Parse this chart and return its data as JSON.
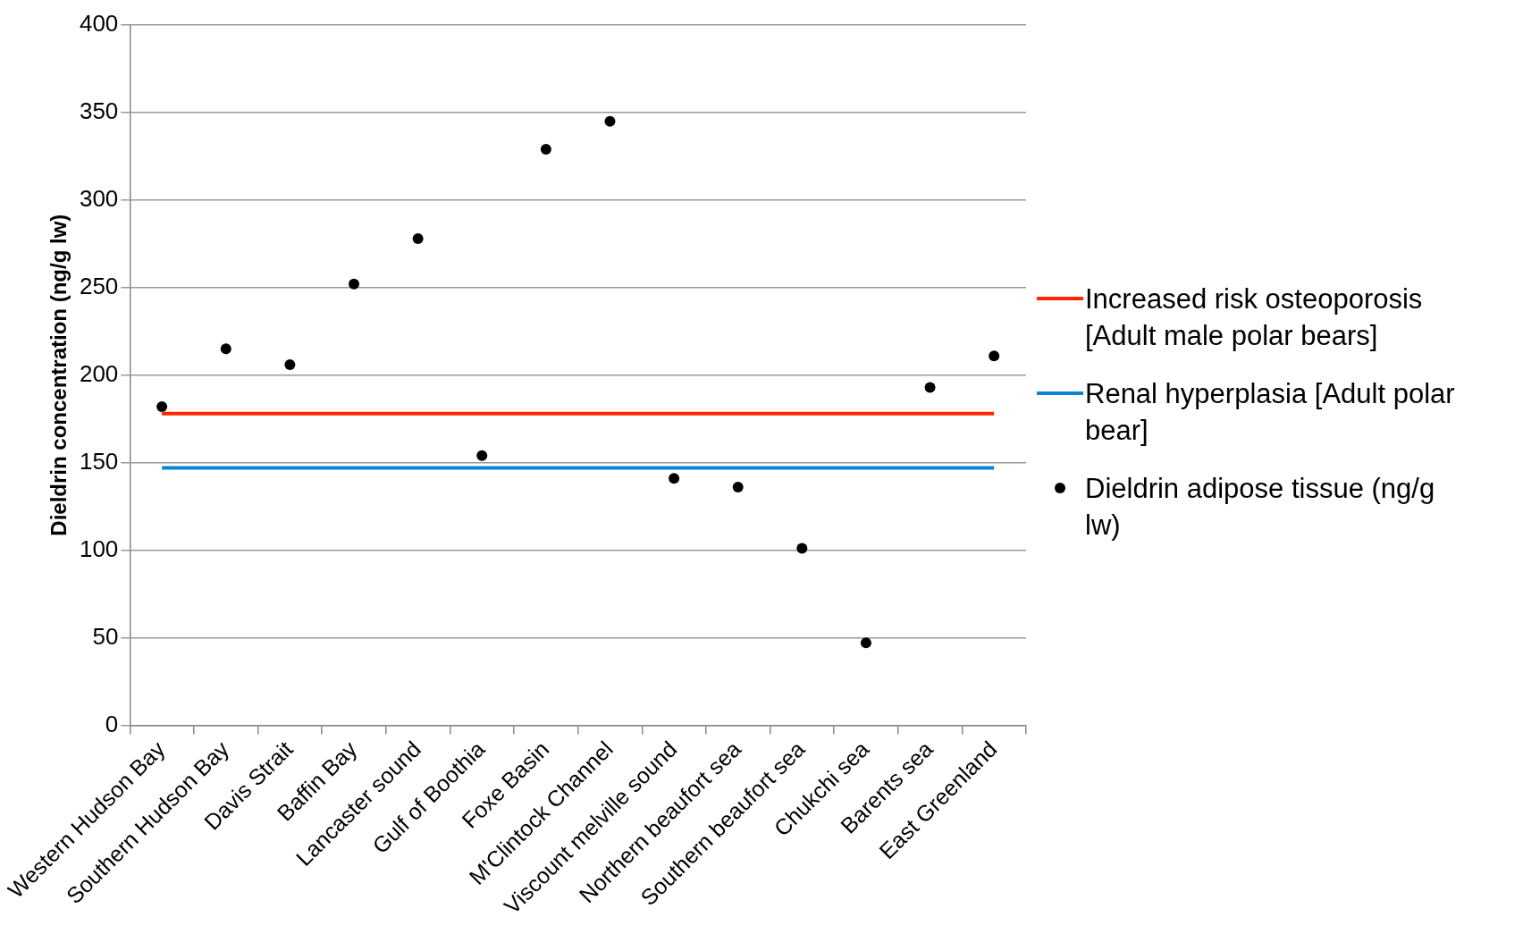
{
  "chart_data": {
    "type": "scatter",
    "ylabel": "Dieldrin concentration (ng/g lw)",
    "categories": [
      "Western Hudson Bay",
      "Southern Hudson Bay",
      "Davis Strait",
      "Baffin Bay",
      "Lancaster sound",
      "Gulf of Boothia",
      "Foxe Basin",
      "M'Clintock Channel",
      "Viscount melville sound",
      "Northern beaufort sea",
      "Southern beaufort sea",
      "Chukchi sea",
      "Barents sea",
      "East Greenland"
    ],
    "series": [
      {
        "name": "Increased risk osteoporosis [Adult male polar bears]",
        "type": "line",
        "marker": "none",
        "color": "#ff2600",
        "values": [
          178,
          178,
          178,
          178,
          178,
          178,
          178,
          178,
          178,
          178,
          178,
          178,
          178,
          178
        ]
      },
      {
        "name": "Renal hyperplasia [Adult polar bear]",
        "type": "line",
        "marker": "none",
        "color": "#0b84d4",
        "values": [
          147,
          147,
          147,
          147,
          147,
          147,
          147,
          147,
          147,
          147,
          147,
          147,
          147,
          147
        ]
      },
      {
        "name": "Dieldrin adipose tissue (ng/g lw)",
        "marker": "circle",
        "color": "#000000",
        "values": [
          182,
          215,
          206,
          252,
          278,
          154,
          329,
          345,
          141,
          136,
          101,
          47,
          193,
          211
        ]
      }
    ],
    "ylim": [
      0,
      400
    ],
    "yticks": [
      0,
      50,
      100,
      150,
      200,
      250,
      300,
      350,
      400
    ],
    "grid": "y",
    "legend": "right"
  }
}
